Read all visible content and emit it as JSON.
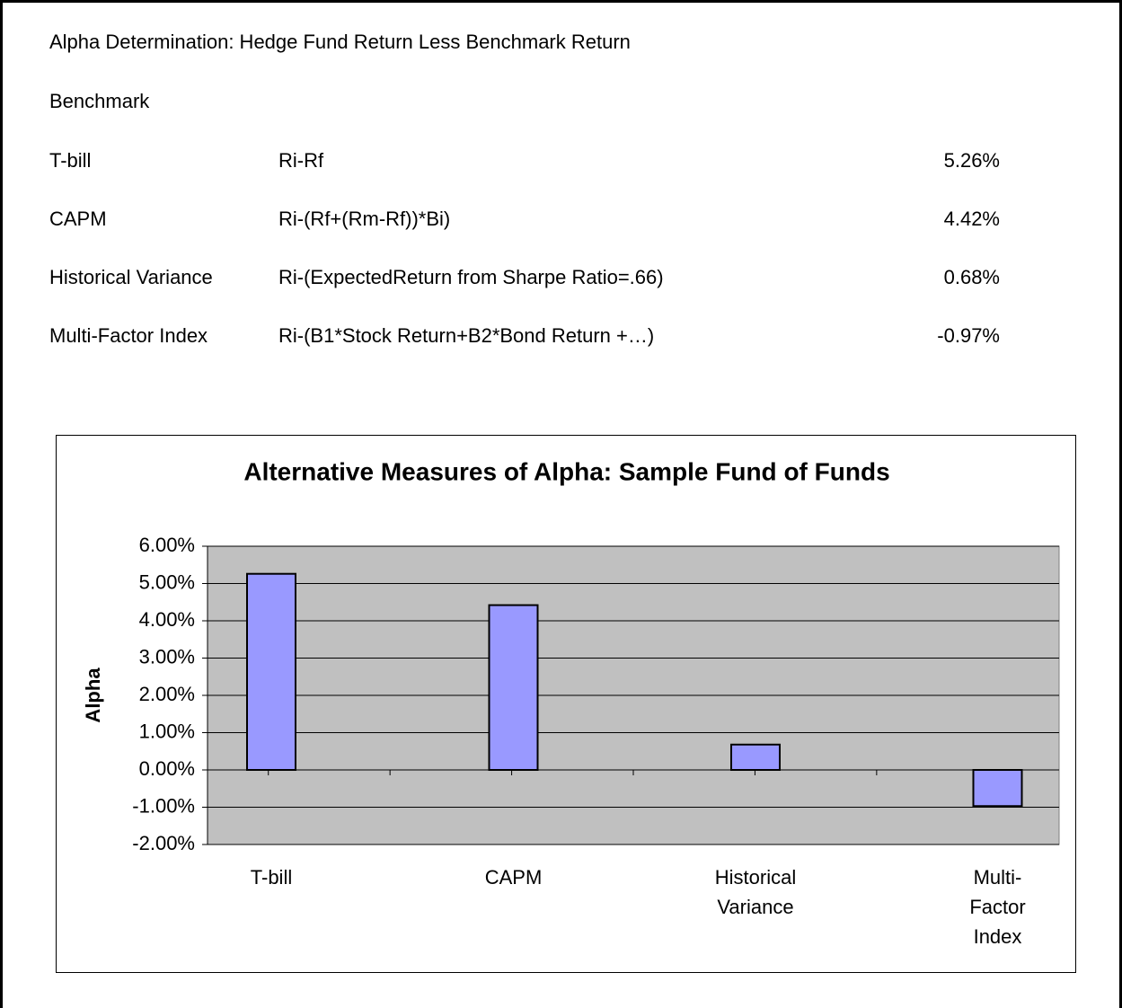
{
  "header": {
    "title": "Alpha Determination: Hedge Fund Return Less Benchmark Return",
    "subtitle": "Benchmark"
  },
  "table": {
    "rows": [
      [
        "T-bill",
        "Ri-Rf",
        "5.26%"
      ],
      [
        "CAPM",
        "Ri-(Rf+(Rm-Rf))*Bi)",
        "4.42%"
      ],
      [
        "Historical Variance",
        "Ri-(ExpectedReturn from Sharpe Ratio=.66)",
        "0.68%"
      ],
      [
        "Multi-Factor Index",
        "Ri-(B1*Stock Return+B2*Bond Return +…)",
        "-0.97%"
      ]
    ]
  },
  "chart_data": {
    "type": "bar",
    "title": "Alternative Measures of Alpha: Sample Fund of Funds",
    "y_label": "Alpha",
    "categories": [
      "T-bill",
      "CAPM",
      "Historical Variance",
      "Multi-Factor Index"
    ],
    "values": [
      5.26,
      4.42,
      0.68,
      -0.97
    ],
    "color": "#9999ff",
    "ylim": [
      -2,
      6
    ],
    "yticks": [
      {
        "value": -2,
        "label": "-2.00%"
      },
      {
        "value": -1,
        "label": "-1.00%"
      },
      {
        "value": 0,
        "label": "0.00%"
      },
      {
        "value": 1,
        "label": "1.00%"
      },
      {
        "value": 2,
        "label": "2.00%"
      },
      {
        "value": 3,
        "label": "3.00%"
      },
      {
        "value": 4,
        "label": "4.00%"
      },
      {
        "value": 5,
        "label": "5.00%"
      },
      {
        "value": 6,
        "label": "6.00%"
      }
    ],
    "grid": true
  }
}
